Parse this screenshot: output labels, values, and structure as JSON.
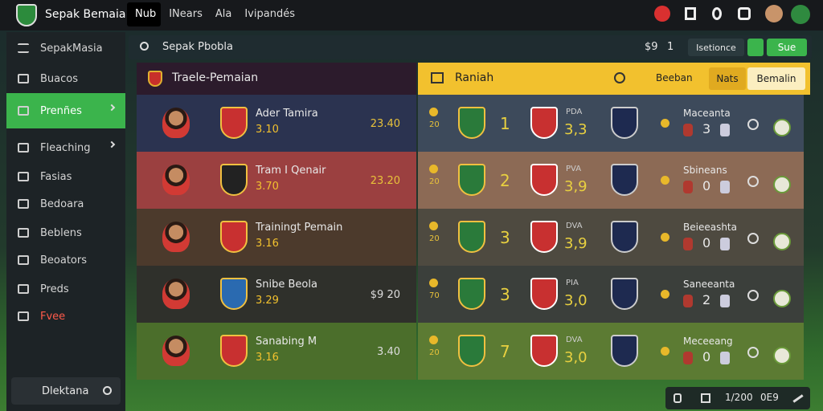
{
  "topbar": {
    "brand": "Sepak Bemaia",
    "nav": [
      "Nub",
      "INears",
      "Ala",
      "Ivipandés"
    ]
  },
  "sidebar": {
    "title": "SepakMasia",
    "items": [
      "Buacos",
      "Prenñes",
      "Fleaching",
      "Fasias",
      "Bedoara",
      "Beblens",
      "Beoators",
      "Preds",
      "Fvee"
    ],
    "footer": "Dlektana"
  },
  "searchbar": {
    "query": "Sepak Pbobla",
    "count": "$9",
    "page": "1",
    "filter": "Isetionce",
    "button": "Sue"
  },
  "players": {
    "title": "Traele-Pemaian",
    "rows": [
      {
        "name": "Ader Tamira",
        "rating": "3.10",
        "score": "23.40"
      },
      {
        "name": "Tram I Qenair",
        "rating": "3.70",
        "score": "23.20"
      },
      {
        "name": "Trainingt Pemain",
        "rating": "3.16"
      },
      {
        "name": "Snibe Beola",
        "rating": "3.29",
        "score": "$9 20"
      },
      {
        "name": "Sanabing M",
        "rating": "3.16",
        "score": "3.40"
      }
    ]
  },
  "ranking": {
    "title": "Raniah",
    "filter": "Beeban",
    "tabs": [
      "Nats",
      "Bemalin"
    ],
    "rows": [
      {
        "points": "20",
        "rank": "1",
        "tag": "PDA",
        "score": "3,3",
        "team": "Maceanta",
        "goals": "3"
      },
      {
        "points": "20",
        "rank": "2",
        "tag": "PVA",
        "score": "3,9",
        "team": "Sbineans",
        "goals": "0"
      },
      {
        "points": "20",
        "rank": "3",
        "tag": "DVA",
        "score": "3,9",
        "team": "Beieeashta",
        "goals": "0"
      },
      {
        "points": "70",
        "rank": "3",
        "tag": "PIA",
        "score": "3,0",
        "team": "Saneeanta",
        "goals": "2"
      },
      {
        "points": "20",
        "rank": "7",
        "tag": "DVA",
        "score": "3,0",
        "team": "Meceeang",
        "goals": "0"
      }
    ]
  },
  "statusbar": {
    "time": "1/200",
    "code": "0E9"
  }
}
